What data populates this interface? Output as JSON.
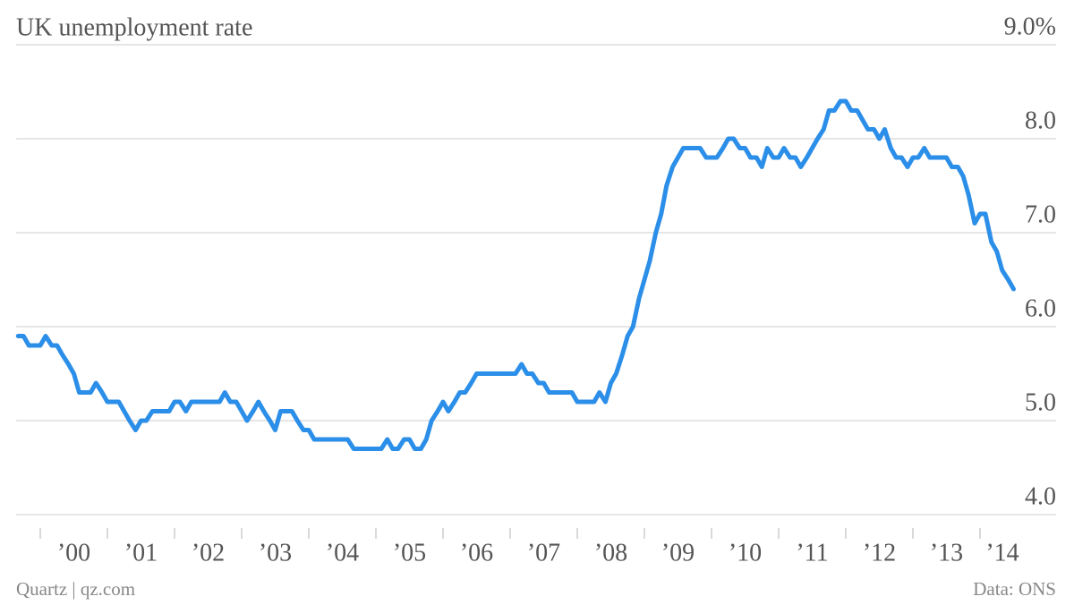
{
  "chart_data": {
    "type": "line",
    "title": "UK unemployment rate",
    "credit": "Quartz | qz.com",
    "source": "Data: ONS",
    "color": "#2b8ee8",
    "grid": true,
    "xlim": [
      1999.64,
      2014.5
    ],
    "ylim": [
      4,
      9
    ],
    "yticks": [
      {
        "value": 9,
        "label": "9.0%"
      },
      {
        "value": 8,
        "label": "8.0"
      },
      {
        "value": 7,
        "label": "7.0"
      },
      {
        "value": 6,
        "label": "6.0"
      },
      {
        "value": 5,
        "label": "5.0"
      },
      {
        "value": 4,
        "label": "4.0"
      }
    ],
    "xticks": [
      {
        "value": 2000,
        "label": "’00"
      },
      {
        "value": 2001,
        "label": "’01"
      },
      {
        "value": 2002,
        "label": "’02"
      },
      {
        "value": 2003,
        "label": "’03"
      },
      {
        "value": 2004,
        "label": "’04"
      },
      {
        "value": 2005,
        "label": "’05"
      },
      {
        "value": 2006,
        "label": "’06"
      },
      {
        "value": 2007,
        "label": "’07"
      },
      {
        "value": 2008,
        "label": "’08"
      },
      {
        "value": 2009,
        "label": "’09"
      },
      {
        "value": 2010,
        "label": "’10"
      },
      {
        "value": 2011,
        "label": "’11"
      },
      {
        "value": 2012,
        "label": "’12"
      },
      {
        "value": 2013,
        "label": "’13"
      },
      {
        "value": 2014,
        "label": "’14"
      }
    ],
    "x": [
      1999.67,
      1999.75,
      1999.83,
      1999.92,
      2000,
      2000.08,
      2000.17,
      2000.25,
      2000.33,
      2000.42,
      2000.5,
      2000.58,
      2000.67,
      2000.75,
      2000.83,
      2000.92,
      2001,
      2001.08,
      2001.17,
      2001.25,
      2001.33,
      2001.42,
      2001.5,
      2001.58,
      2001.67,
      2001.75,
      2001.83,
      2001.92,
      2002,
      2002.08,
      2002.17,
      2002.25,
      2002.33,
      2002.42,
      2002.5,
      2002.58,
      2002.67,
      2002.75,
      2002.83,
      2002.92,
      2003,
      2003.08,
      2003.17,
      2003.25,
      2003.33,
      2003.42,
      2003.5,
      2003.58,
      2003.67,
      2003.75,
      2003.83,
      2003.92,
      2004,
      2004.08,
      2004.17,
      2004.25,
      2004.33,
      2004.42,
      2004.5,
      2004.58,
      2004.67,
      2004.75,
      2004.83,
      2004.92,
      2005,
      2005.08,
      2005.17,
      2005.25,
      2005.33,
      2005.42,
      2005.5,
      2005.58,
      2005.67,
      2005.75,
      2005.83,
      2005.92,
      2006,
      2006.08,
      2006.17,
      2006.25,
      2006.33,
      2006.42,
      2006.5,
      2006.58,
      2006.67,
      2006.75,
      2006.83,
      2006.92,
      2007,
      2007.08,
      2007.17,
      2007.25,
      2007.33,
      2007.42,
      2007.5,
      2007.58,
      2007.67,
      2007.75,
      2007.83,
      2007.92,
      2008,
      2008.08,
      2008.17,
      2008.25,
      2008.33,
      2008.42,
      2008.5,
      2008.58,
      2008.67,
      2008.75,
      2008.83,
      2008.92,
      2009,
      2009.08,
      2009.17,
      2009.25,
      2009.33,
      2009.42,
      2009.5,
      2009.58,
      2009.67,
      2009.75,
      2009.83,
      2009.92,
      2010,
      2010.08,
      2010.17,
      2010.25,
      2010.33,
      2010.42,
      2010.5,
      2010.58,
      2010.67,
      2010.75,
      2010.83,
      2010.92,
      2011,
      2011.08,
      2011.17,
      2011.25,
      2011.33,
      2011.42,
      2011.5,
      2011.58,
      2011.67,
      2011.75,
      2011.83,
      2011.92,
      2012,
      2012.08,
      2012.17,
      2012.25,
      2012.33,
      2012.42,
      2012.5,
      2012.58,
      2012.67,
      2012.75,
      2012.83,
      2012.92,
      2013,
      2013.08,
      2013.17,
      2013.25,
      2013.33,
      2013.42,
      2013.5,
      2013.58,
      2013.67,
      2013.75,
      2013.83,
      2013.92,
      2014,
      2014.08,
      2014.17,
      2014.25,
      2014.33,
      2014.42,
      2014.5
    ],
    "values": [
      5.9,
      5.9,
      5.8,
      5.8,
      5.8,
      5.9,
      5.8,
      5.8,
      5.7,
      5.6,
      5.5,
      5.3,
      5.3,
      5.3,
      5.4,
      5.3,
      5.2,
      5.2,
      5.2,
      5.1,
      5.0,
      4.9,
      5.0,
      5.0,
      5.1,
      5.1,
      5.1,
      5.1,
      5.2,
      5.2,
      5.1,
      5.2,
      5.2,
      5.2,
      5.2,
      5.2,
      5.2,
      5.3,
      5.2,
      5.2,
      5.1,
      5.0,
      5.1,
      5.2,
      5.1,
      5.0,
      4.9,
      5.1,
      5.1,
      5.1,
      5.0,
      4.9,
      4.9,
      4.8,
      4.8,
      4.8,
      4.8,
      4.8,
      4.8,
      4.8,
      4.7,
      4.7,
      4.7,
      4.7,
      4.7,
      4.7,
      4.8,
      4.7,
      4.7,
      4.8,
      4.8,
      4.7,
      4.7,
      4.8,
      5.0,
      5.1,
      5.2,
      5.1,
      5.2,
      5.3,
      5.3,
      5.4,
      5.5,
      5.5,
      5.5,
      5.5,
      5.5,
      5.5,
      5.5,
      5.5,
      5.6,
      5.5,
      5.5,
      5.4,
      5.4,
      5.3,
      5.3,
      5.3,
      5.3,
      5.3,
      5.2,
      5.2,
      5.2,
      5.2,
      5.3,
      5.2,
      5.4,
      5.5,
      5.7,
      5.9,
      6.0,
      6.3,
      6.5,
      6.7,
      7.0,
      7.2,
      7.5,
      7.7,
      7.8,
      7.9,
      7.9,
      7.9,
      7.9,
      7.8,
      7.8,
      7.8,
      7.9,
      8.0,
      8.0,
      7.9,
      7.9,
      7.8,
      7.8,
      7.7,
      7.9,
      7.8,
      7.8,
      7.9,
      7.8,
      7.8,
      7.7,
      7.8,
      7.9,
      8.0,
      8.1,
      8.3,
      8.3,
      8.4,
      8.4,
      8.3,
      8.3,
      8.2,
      8.1,
      8.1,
      8.0,
      8.1,
      7.9,
      7.8,
      7.8,
      7.7,
      7.8,
      7.8,
      7.9,
      7.8,
      7.8,
      7.8,
      7.8,
      7.7,
      7.7,
      7.6,
      7.4,
      7.1,
      7.2,
      7.2,
      6.9,
      6.8,
      6.6,
      6.5,
      6.4
    ]
  }
}
